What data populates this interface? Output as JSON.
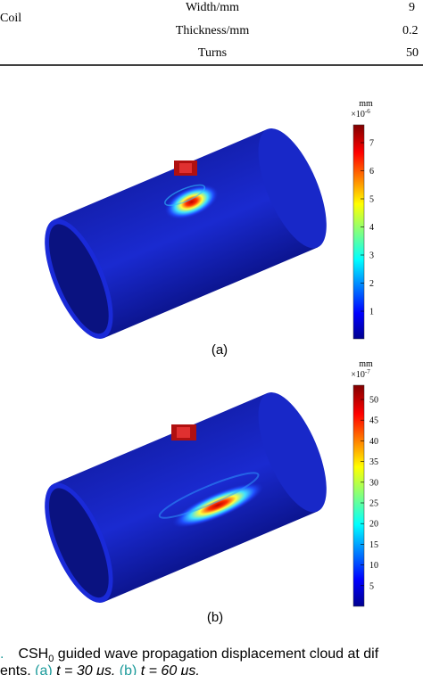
{
  "table": {
    "group": "Coil",
    "rows": [
      [
        "Width/mm",
        "9"
      ],
      [
        "Thickness/mm",
        "0.2"
      ],
      [
        "Turns",
        "50"
      ]
    ]
  },
  "figures": [
    {
      "label": "(a)",
      "unit": "mm",
      "scale": "×10",
      "exponent": "-6",
      "ticks": [
        "7",
        "6",
        "5",
        "4",
        "3",
        "2",
        "1"
      ]
    },
    {
      "label": "(b)",
      "unit": "mm",
      "scale": "×10",
      "exponent": "-7",
      "ticks": [
        "50",
        "45",
        "40",
        "35",
        "30",
        "25",
        "20",
        "15",
        "10",
        "5"
      ]
    }
  ],
  "caption": {
    "number": ".",
    "line1": [
      "CSH",
      "0",
      " guided wave propagation displacement cloud at dif"
    ],
    "line2": [
      "ents. ",
      "(a)",
      " t = 30 μs. ",
      "(b)",
      " t = 60 μs."
    ]
  }
}
